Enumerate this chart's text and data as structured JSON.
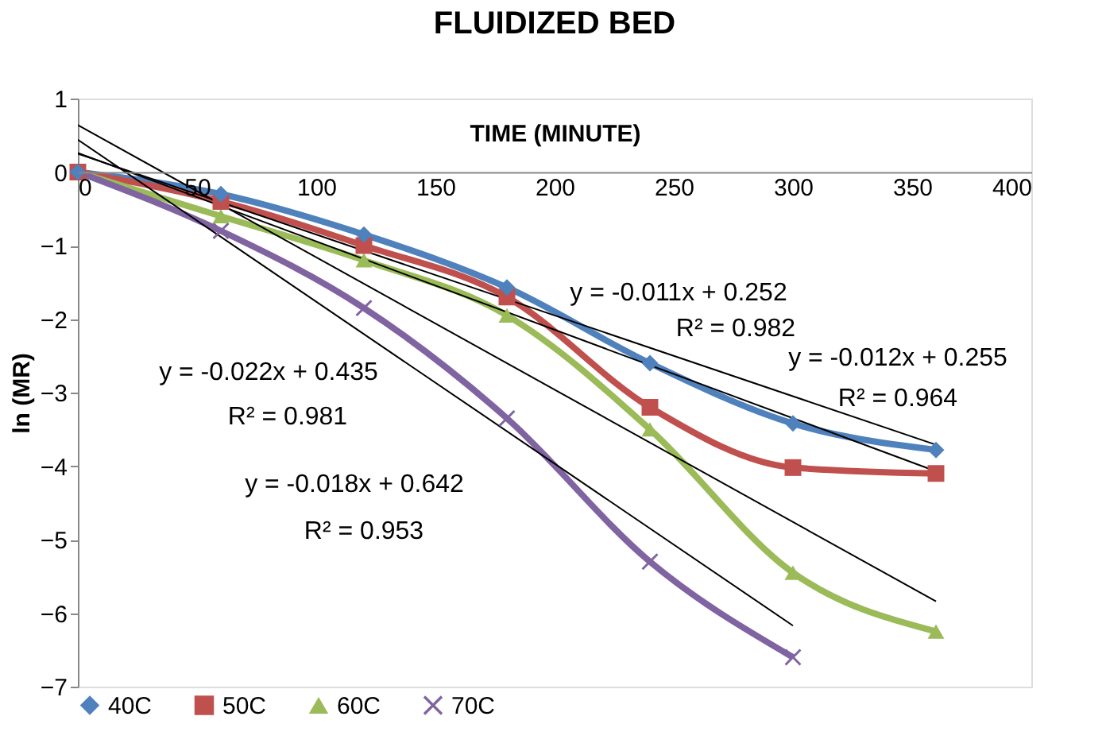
{
  "chart_data": {
    "type": "line",
    "title": "FLUIDIZED BED",
    "xlabel": "TIME (MINUTE)",
    "ylabel": "ln (MR)",
    "xlim": [
      0,
      400
    ],
    "xticks": [
      0,
      50,
      100,
      150,
      200,
      250,
      300,
      350,
      400
    ],
    "ylim": [
      -7,
      1
    ],
    "yticks": [
      -7,
      -6,
      -5,
      -4,
      -3,
      -2,
      -1,
      0,
      1
    ],
    "grid": false,
    "legend": "bottom",
    "series": [
      {
        "name": "40C",
        "color": "#4f81bd",
        "marker": "diamond",
        "x": [
          0,
          60,
          120,
          180,
          240,
          300,
          360
        ],
        "values": [
          0,
          -0.3,
          -0.85,
          -1.57,
          -2.6,
          -3.42,
          -3.78
        ]
      },
      {
        "name": "50C",
        "color": "#c0504d",
        "marker": "square",
        "x": [
          0,
          60,
          120,
          180,
          240,
          300,
          360
        ],
        "values": [
          0,
          -0.4,
          -1.0,
          -1.7,
          -3.2,
          -4.02,
          -4.1
        ]
      },
      {
        "name": "60C",
        "color": "#9bbb59",
        "marker": "triangle",
        "x": [
          0,
          60,
          120,
          180,
          240,
          300,
          360
        ],
        "values": [
          0,
          -0.6,
          -1.2,
          -1.95,
          -3.5,
          -5.45,
          -6.25
        ]
      },
      {
        "name": "70C",
        "color": "#8064a2",
        "marker": "cross",
        "x": [
          0,
          60,
          120,
          180,
          240,
          300
        ],
        "values": [
          0,
          -0.8,
          -1.85,
          -3.35,
          -5.3,
          -6.6
        ]
      },
      {
        "color": "#000000",
        "marker": "none",
        "x": [
          0,
          360
        ],
        "values": [
          0.25,
          -3.71
        ]
      },
      {
        "color": "#000000",
        "marker": "none",
        "x": [
          0,
          360
        ],
        "values": [
          0.26,
          -4.07
        ]
      },
      {
        "color": "#000000",
        "marker": "none",
        "x": [
          0,
          360
        ],
        "values": [
          0.64,
          -5.84
        ]
      },
      {
        "color": "#000000",
        "marker": "none",
        "x": [
          0,
          300
        ],
        "values": [
          0.44,
          -6.17
        ]
      }
    ],
    "line_style": "solid",
    "annotations": [
      "y = -0.011x + 0.252",
      "R² = 0.982",
      "y = -0.012x + 0.255",
      "R² = 0.964",
      "y = -0.022x + 0.435",
      "R² = 0.981",
      "y = -0.018x + 0.642",
      "R² = 0.953"
    ]
  }
}
